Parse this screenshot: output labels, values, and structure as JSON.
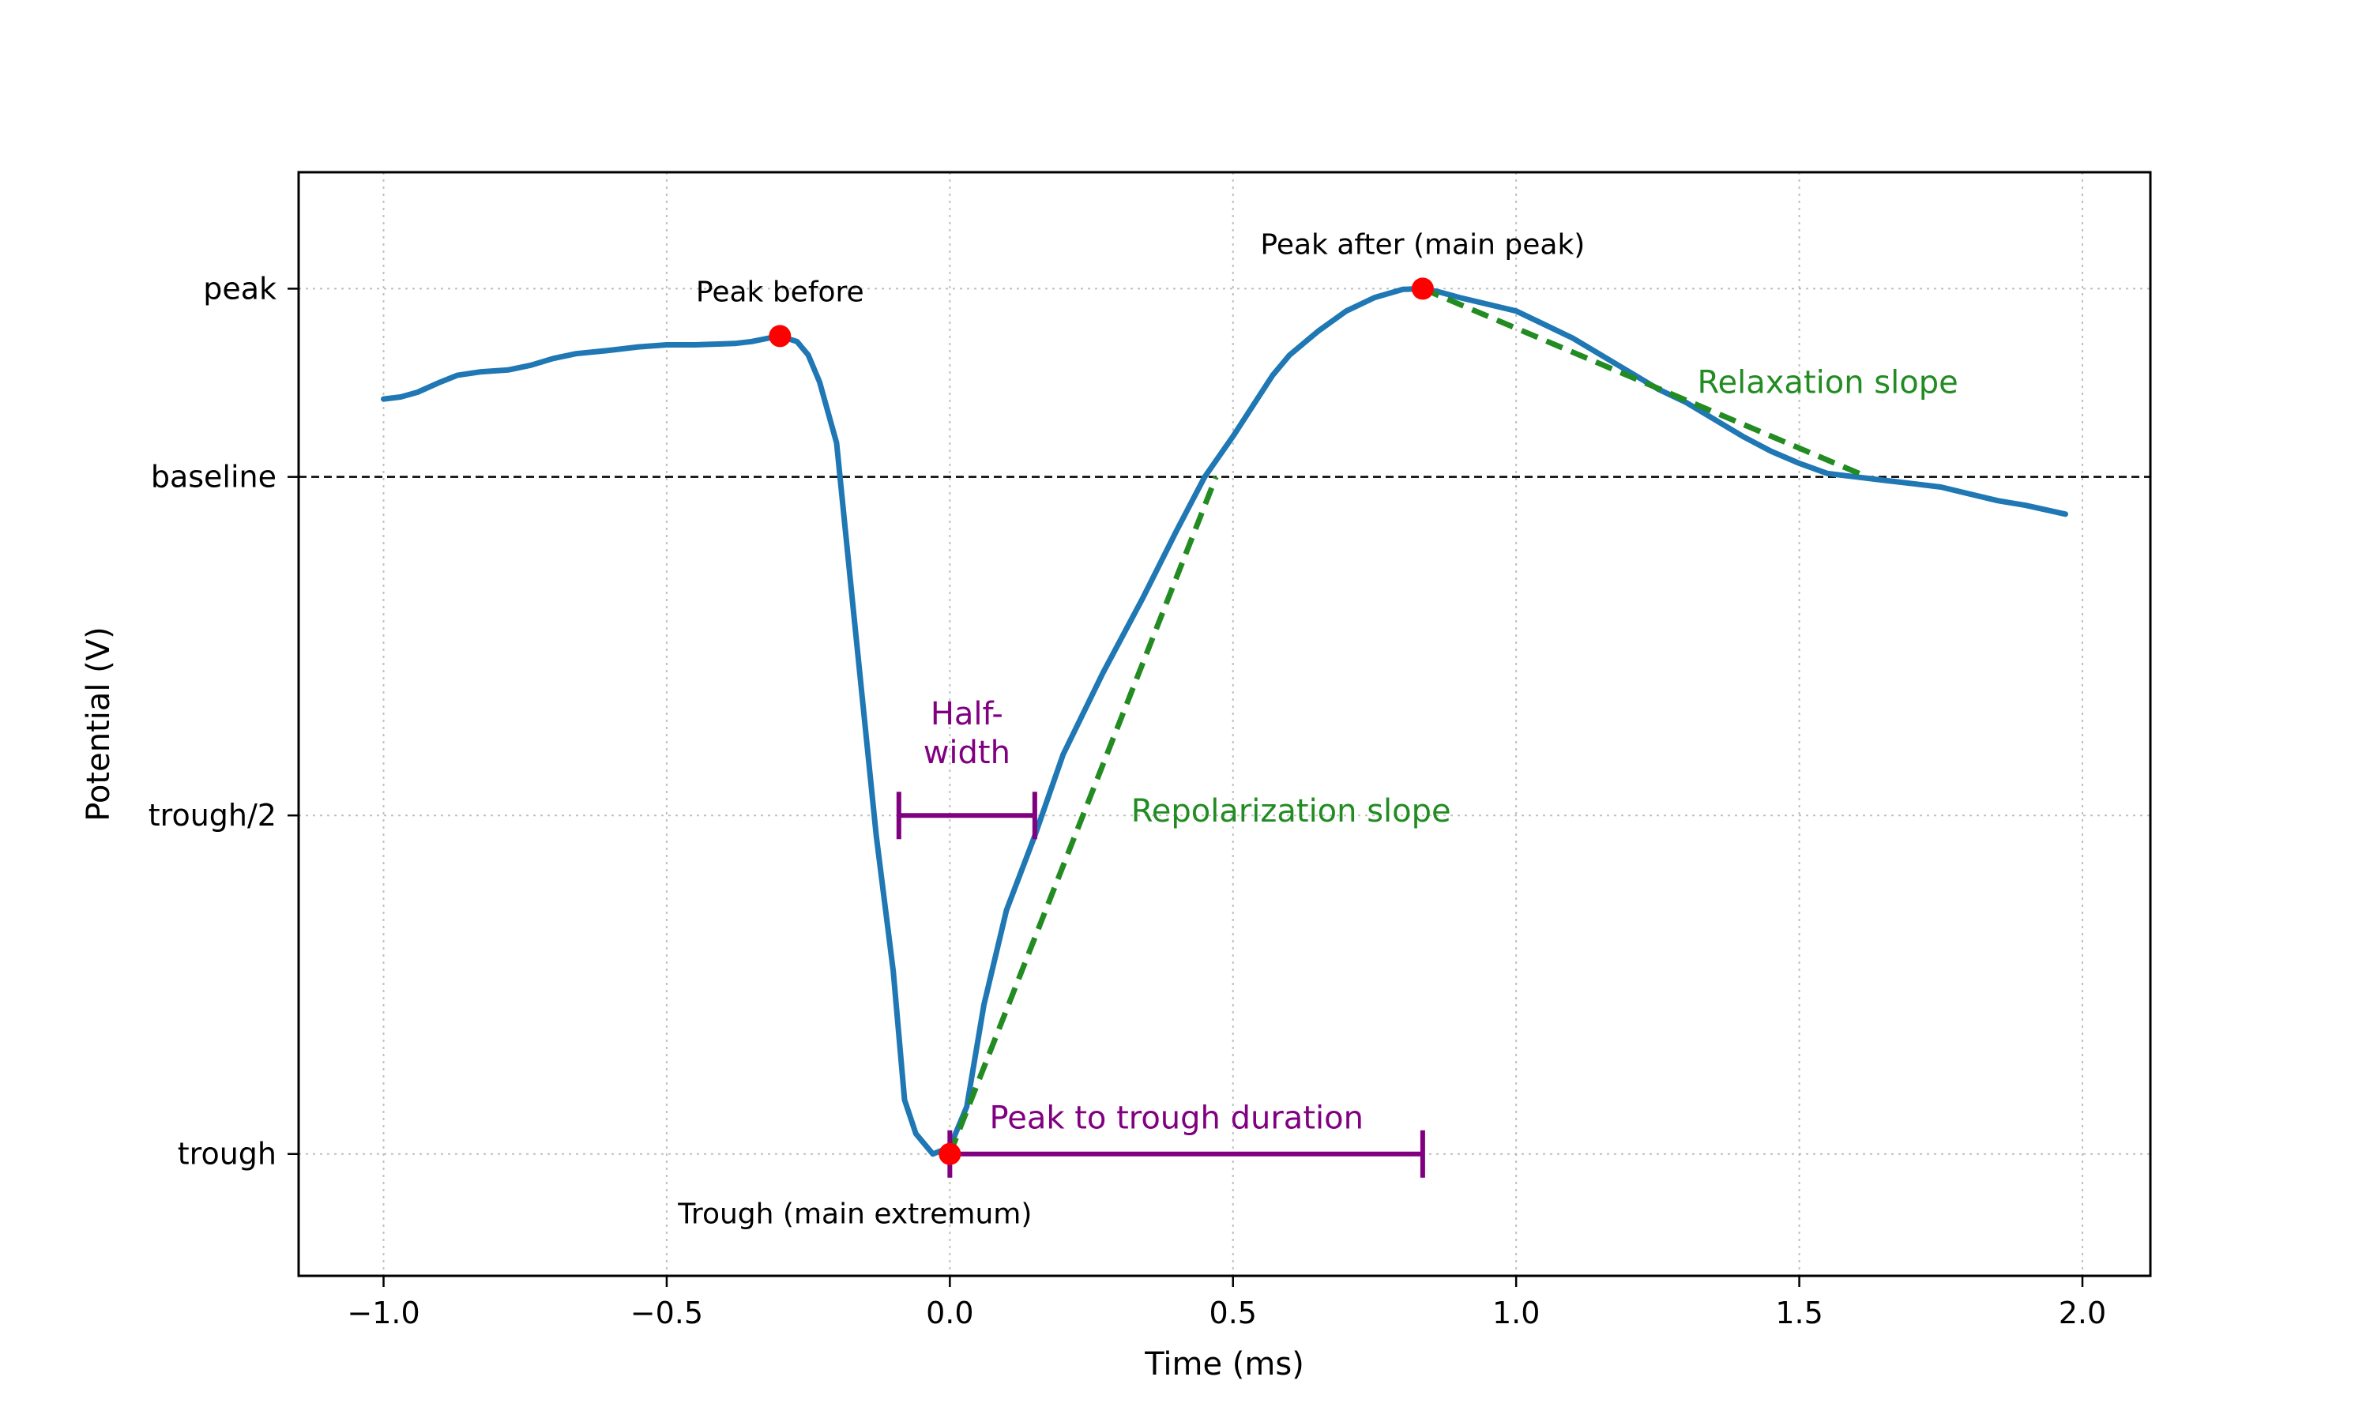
{
  "chart_data": {
    "type": "line",
    "xlabel": "Time (ms)",
    "ylabel": "Potential (V)",
    "xlim": [
      -1.15,
      2.12
    ],
    "ylim": [
      -1.18,
      0.45
    ],
    "grid": true,
    "x_ticks": [
      {
        "value": -1.0,
        "label": "−1.0"
      },
      {
        "value": -0.5,
        "label": "−0.5"
      },
      {
        "value": 0.0,
        "label": "0.0"
      },
      {
        "value": 0.5,
        "label": "0.5"
      },
      {
        "value": 1.0,
        "label": "1.0"
      },
      {
        "value": 1.5,
        "label": "1.5"
      },
      {
        "value": 2.0,
        "label": "2.0"
      }
    ],
    "y_ticks": [
      {
        "value": 0.278,
        "label": "peak"
      },
      {
        "value": 0.0,
        "label": "baseline"
      },
      {
        "value": -0.5,
        "label": "trough/2"
      },
      {
        "value": -1.0,
        "label": "trough"
      }
    ],
    "series": [
      {
        "name": "waveform",
        "color": "#1f77b4",
        "x": [
          -1.0,
          -0.97,
          -0.94,
          -0.9,
          -0.87,
          -0.83,
          -0.78,
          -0.74,
          -0.7,
          -0.66,
          -0.6,
          -0.55,
          -0.5,
          -0.45,
          -0.42,
          -0.38,
          -0.35,
          -0.32,
          -0.3,
          -0.27,
          -0.25,
          -0.23,
          -0.2,
          -0.17,
          -0.13,
          -0.1,
          -0.08,
          -0.06,
          -0.03,
          0.0,
          0.03,
          0.06,
          0.1,
          0.15,
          0.2,
          0.27,
          0.34,
          0.4,
          0.45,
          0.5,
          0.57,
          0.6,
          0.65,
          0.7,
          0.75,
          0.8,
          0.83,
          0.86,
          0.9,
          0.95,
          1.0,
          1.05,
          1.1,
          1.15,
          1.2,
          1.25,
          1.3,
          1.35,
          1.4,
          1.45,
          1.5,
          1.55,
          1.6,
          1.65,
          1.7,
          1.75,
          1.8,
          1.85,
          1.9,
          1.97
        ],
        "y": [
          0.115,
          0.118,
          0.125,
          0.14,
          0.15,
          0.155,
          0.158,
          0.165,
          0.175,
          0.182,
          0.187,
          0.192,
          0.195,
          0.195,
          0.196,
          0.197,
          0.2,
          0.205,
          0.208,
          0.2,
          0.18,
          0.14,
          0.05,
          -0.2,
          -0.53,
          -0.73,
          -0.92,
          -0.97,
          -1.0,
          -0.99,
          -0.93,
          -0.78,
          -0.64,
          -0.53,
          -0.41,
          -0.29,
          -0.18,
          -0.08,
          0.0,
          0.06,
          0.15,
          0.18,
          0.215,
          0.245,
          0.265,
          0.277,
          0.278,
          0.274,
          0.265,
          0.255,
          0.245,
          0.225,
          0.205,
          0.18,
          0.155,
          0.13,
          0.11,
          0.085,
          0.06,
          0.038,
          0.02,
          0.005,
          0.0,
          -0.005,
          -0.01,
          -0.015,
          -0.025,
          -0.035,
          -0.042,
          -0.055
        ]
      }
    ],
    "baseline": {
      "value": 0.0,
      "style": "dashed",
      "color": "#000000"
    },
    "markers": [
      {
        "name": "peak-before",
        "x": -0.3,
        "y": 0.208,
        "color": "#ff0000",
        "label": "Peak before"
      },
      {
        "name": "peak-after",
        "x": 0.835,
        "y": 0.278,
        "color": "#ff0000",
        "label": "Peak after (main peak)"
      },
      {
        "name": "trough",
        "x": 0.0,
        "y": -1.0,
        "color": "#ff0000",
        "label": "Trough (main extremum)"
      }
    ],
    "slope_lines": [
      {
        "name": "repolarization",
        "label": "Repolarization slope",
        "color": "#228b22",
        "x": [
          0.0,
          0.47
        ],
        "y": [
          -1.0,
          0.0
        ]
      },
      {
        "name": "relaxation",
        "label": "Relaxation slope",
        "color": "#228b22",
        "x": [
          0.835,
          1.62
        ],
        "y": [
          0.278,
          0.0
        ]
      }
    ],
    "intervals": [
      {
        "name": "half-width",
        "label_lines": [
          "Half-",
          "width"
        ],
        "color": "#800080",
        "x": [
          -0.09,
          0.15
        ],
        "y": -0.5
      },
      {
        "name": "peak-to-trough",
        "label_lines": [
          "Peak to trough duration"
        ],
        "color": "#800080",
        "x": [
          0.0,
          0.835
        ],
        "y": -1.0
      }
    ]
  }
}
